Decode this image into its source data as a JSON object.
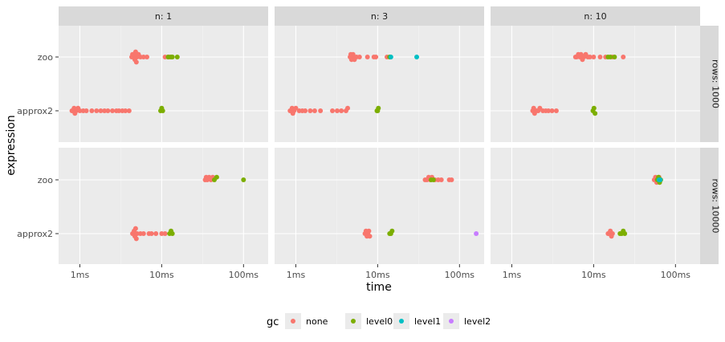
{
  "chart_data": {
    "type": "scatter",
    "x_scale": "log10",
    "xlabel": "time",
    "ylabel": "expression",
    "x_breaks": [
      {
        "value": 0.001,
        "label": "1ms"
      },
      {
        "value": 0.01,
        "label": "10ms"
      },
      {
        "value": 0.1,
        "label": "100ms"
      }
    ],
    "xlim": [
      0.00055,
      0.2
    ],
    "y_categories": [
      "approx2",
      "zoo"
    ],
    "facet_cols": [
      {
        "key": "n1",
        "label": "n: 1"
      },
      {
        "key": "n3",
        "label": "n: 3"
      },
      {
        "key": "n10",
        "label": "n: 10"
      }
    ],
    "facet_rows": [
      {
        "key": "r1000",
        "label": "rows: 1000"
      },
      {
        "key": "r10000",
        "label": "rows: 10000"
      }
    ],
    "legend": {
      "title": "gc",
      "items": [
        {
          "key": "none",
          "label": "none",
          "color": "#F8766D"
        },
        {
          "key": "level0",
          "label": "level0",
          "color": "#7CAE00"
        },
        {
          "key": "level1",
          "label": "level1",
          "color": "#00BFC4"
        },
        {
          "key": "level2",
          "label": "level2",
          "color": "#C77CFF"
        }
      ]
    },
    "panels": [
      {
        "row": 0,
        "col": 0,
        "groups": [
          {
            "expr": "zoo",
            "gc": "none",
            "times": [
              0.0043,
              0.0044,
              0.0045,
              0.0046,
              0.0047,
              0.0048,
              0.0049,
              0.005,
              0.0052,
              0.0055,
              0.006,
              0.0066,
              0.011,
              0.012,
              0.0125
            ]
          },
          {
            "expr": "zoo",
            "gc": "level0",
            "times": [
              0.012,
              0.013,
              0.0135,
              0.0155
            ]
          },
          {
            "expr": "approx2",
            "gc": "none",
            "times": [
              0.0008,
              0.00082,
              0.00085,
              0.00087,
              0.0009,
              0.00095,
              0.001,
              0.0011,
              0.0012,
              0.0014,
              0.0016,
              0.0018,
              0.002,
              0.0022,
              0.0025,
              0.0028,
              0.003,
              0.0033,
              0.0036,
              0.004
            ]
          },
          {
            "expr": "approx2",
            "gc": "level0",
            "times": [
              0.0097,
              0.01,
              0.0103
            ]
          }
        ]
      },
      {
        "row": 0,
        "col": 1,
        "groups": [
          {
            "expr": "zoo",
            "gc": "none",
            "times": [
              0.0046,
              0.0047,
              0.0048,
              0.0049,
              0.005,
              0.0052,
              0.0055,
              0.006,
              0.0075,
              0.009,
              0.0095,
              0.013
            ]
          },
          {
            "expr": "zoo",
            "gc": "level0",
            "times": [
              0.014,
              0.0143
            ]
          },
          {
            "expr": "zoo",
            "gc": "level1",
            "times": [
              0.0145,
              0.03
            ]
          },
          {
            "expr": "approx2",
            "gc": "none",
            "times": [
              0.00085,
              0.00087,
              0.0009,
              0.00092,
              0.00095,
              0.001,
              0.0011,
              0.0012,
              0.0013,
              0.0015,
              0.0017,
              0.002,
              0.0028,
              0.0032,
              0.0036,
              0.0041,
              0.0043
            ]
          },
          {
            "expr": "approx2",
            "gc": "level0",
            "times": [
              0.0098,
              0.01,
              0.0102
            ]
          }
        ]
      },
      {
        "row": 0,
        "col": 2,
        "groups": [
          {
            "expr": "zoo",
            "gc": "none",
            "times": [
              0.006,
              0.0062,
              0.0065,
              0.0068,
              0.007,
              0.0073,
              0.0076,
              0.008,
              0.0085,
              0.009,
              0.01,
              0.012,
              0.014,
              0.017,
              0.023
            ]
          },
          {
            "expr": "zoo",
            "gc": "level0",
            "times": [
              0.015,
              0.016,
              0.018
            ]
          },
          {
            "expr": "approx2",
            "gc": "none",
            "times": [
              0.0018,
              0.00185,
              0.0019,
              0.002,
              0.0021,
              0.0022,
              0.0024,
              0.0026,
              0.0028,
              0.0031,
              0.0035
            ]
          },
          {
            "expr": "approx2",
            "gc": "level0",
            "times": [
              0.0098,
              0.0101,
              0.0104
            ]
          }
        ]
      },
      {
        "row": 1,
        "col": 0,
        "groups": [
          {
            "expr": "zoo",
            "gc": "none",
            "times": [
              0.034,
              0.035,
              0.036,
              0.038,
              0.04,
              0.042
            ]
          },
          {
            "expr": "zoo",
            "gc": "level0",
            "times": [
              0.044,
              0.047,
              0.1
            ]
          },
          {
            "expr": "approx2",
            "gc": "none",
            "times": [
              0.0044,
              0.0045,
              0.0046,
              0.0047,
              0.0048,
              0.0049,
              0.005,
              0.0055,
              0.006,
              0.007,
              0.0075,
              0.0085,
              0.01,
              0.011
            ]
          },
          {
            "expr": "approx2",
            "gc": "level0",
            "times": [
              0.0125,
              0.013,
              0.0135
            ]
          }
        ]
      },
      {
        "row": 1,
        "col": 1,
        "groups": [
          {
            "expr": "zoo",
            "gc": "none",
            "times": [
              0.038,
              0.04,
              0.042,
              0.044,
              0.046,
              0.05,
              0.055,
              0.06,
              0.075,
              0.08
            ]
          },
          {
            "expr": "zoo",
            "gc": "level0",
            "times": [
              0.045,
              0.048
            ]
          },
          {
            "expr": "approx2",
            "gc": "none",
            "times": [
              0.007,
              0.0072,
              0.0074,
              0.0076,
              0.0078,
              0.008
            ]
          },
          {
            "expr": "approx2",
            "gc": "level0",
            "times": [
              0.014,
              0.0145,
              0.015
            ]
          },
          {
            "expr": "approx2",
            "gc": "level2",
            "times": [
              0.16
            ]
          }
        ]
      },
      {
        "row": 1,
        "col": 2,
        "groups": [
          {
            "expr": "zoo",
            "gc": "none",
            "times": [
              0.055,
              0.057,
              0.059,
              0.061,
              0.063
            ]
          },
          {
            "expr": "zoo",
            "gc": "level0",
            "times": [
              0.06,
              0.062,
              0.064,
              0.066
            ]
          },
          {
            "expr": "zoo",
            "gc": "level1",
            "times": [
              0.063,
              0.065
            ]
          },
          {
            "expr": "approx2",
            "gc": "none",
            "times": [
              0.015,
              0.0155,
              0.016,
              0.0165,
              0.017
            ]
          },
          {
            "expr": "approx2",
            "gc": "level0",
            "times": [
              0.021,
              0.022,
              0.023,
              0.024
            ]
          }
        ]
      }
    ]
  }
}
